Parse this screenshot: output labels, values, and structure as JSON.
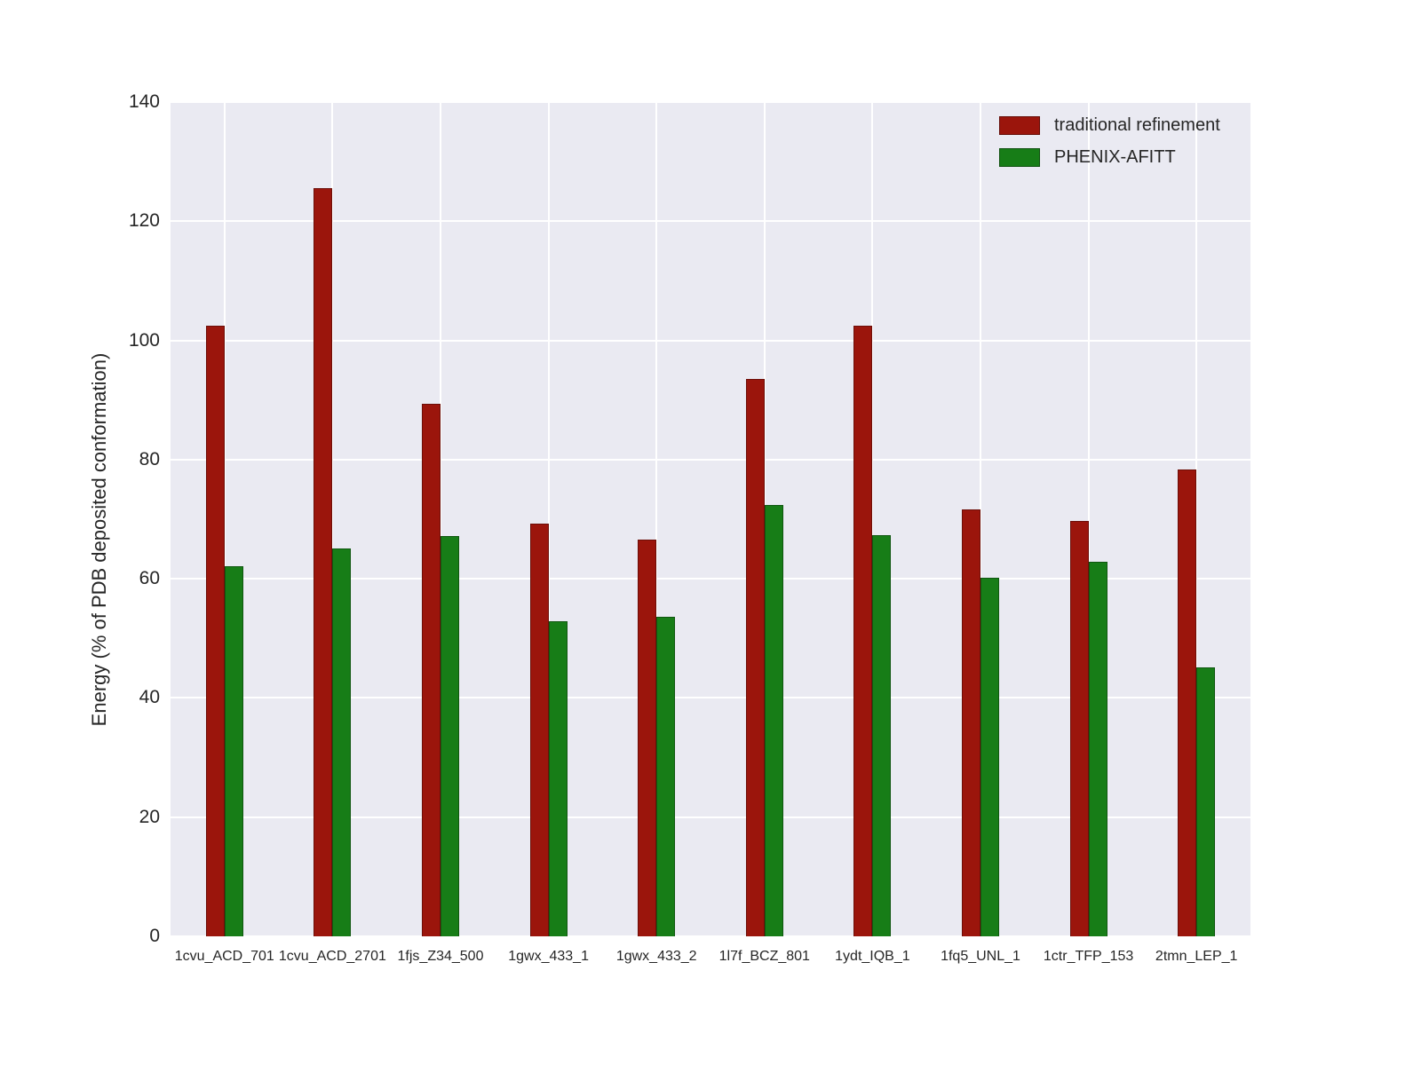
{
  "chart_data": {
    "type": "bar",
    "title": "",
    "xlabel": "",
    "ylabel": "Energy (% of PDB deposited conformation)",
    "ylim": [
      0,
      140
    ],
    "yticks": [
      0,
      20,
      40,
      60,
      80,
      100,
      120,
      140
    ],
    "grid": true,
    "legend_position": "upper right",
    "plot_background": "#eaeaf2",
    "categories": [
      "1cvu_ACD_701",
      "1cvu_ACD_2701",
      "1fjs_Z34_500",
      "1gwx_433_1",
      "1gwx_433_2",
      "1l7f_BCZ_801",
      "1ydt_IQB_1",
      "1fq5_UNL_1",
      "1ctr_TFP_153",
      "2tmn_LEP_1"
    ],
    "series": [
      {
        "name": "traditional refinement",
        "color": "#9b150c",
        "values": [
          102.5,
          125.5,
          89.3,
          69.3,
          66.6,
          93.6,
          102.5,
          71.6,
          69.7,
          78.3
        ]
      },
      {
        "name": "PHENIX-AFITT",
        "color": "#177d17",
        "values": [
          62.1,
          65.1,
          67.1,
          52.9,
          53.6,
          72.4,
          67.3,
          60.2,
          62.9,
          45.2
        ]
      }
    ]
  }
}
